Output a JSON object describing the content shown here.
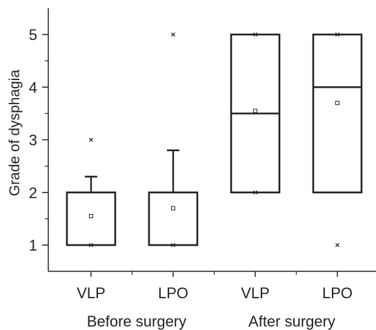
{
  "chart_data": {
    "type": "box",
    "title": "",
    "ylabel": "Grade of dysphagia",
    "xlabel": "",
    "ylim": [
      0.5,
      5.45
    ],
    "yticks": [
      1,
      2,
      3,
      4,
      5
    ],
    "ytick_labels": [
      "1",
      "2",
      "3",
      "4",
      "5"
    ],
    "categories": [
      "VLP",
      "LPO",
      "VLP",
      "LPO"
    ],
    "groups": [
      "Before surgery",
      "After surgery"
    ],
    "boxes": [
      {
        "label": "VLP",
        "group": "Before surgery",
        "q1": 1,
        "median": 2,
        "q3": 2,
        "mean": 1.55,
        "whisker_low": 1,
        "whisker_high": 2.3,
        "min_marker": 1,
        "max_marker": 3
      },
      {
        "label": "LPO",
        "group": "Before surgery",
        "q1": 1,
        "median": 2,
        "q3": 2,
        "mean": 1.7,
        "whisker_low": 1,
        "whisker_high": 2.8,
        "min_marker": 1,
        "max_marker": 5
      },
      {
        "label": "VLP",
        "group": "After surgery",
        "q1": 2,
        "median": 3.5,
        "q3": 5,
        "mean": 3.55,
        "whisker_low": 2,
        "whisker_high": 5,
        "min_marker": 2,
        "max_marker": 5
      },
      {
        "label": "LPO",
        "group": "After surgery",
        "q1": 2,
        "median": 4,
        "q3": 5,
        "mean": 3.7,
        "whisker_low": 2,
        "whisker_high": 5,
        "min_marker": 1,
        "max_marker": 5
      }
    ],
    "grid": false,
    "legend": "none"
  }
}
